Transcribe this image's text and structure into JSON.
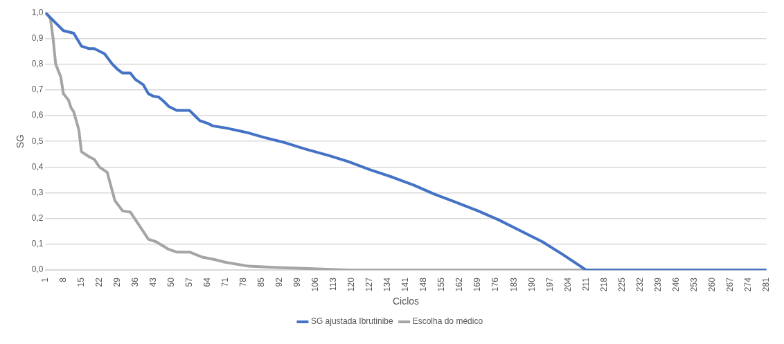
{
  "chart_data": {
    "type": "line",
    "xlabel": "Ciclos",
    "ylabel": "SG",
    "xlim": [
      1,
      281
    ],
    "xticks": [
      1,
      8,
      15,
      22,
      29,
      36,
      43,
      50,
      57,
      64,
      71,
      78,
      85,
      92,
      99,
      106,
      113,
      120,
      127,
      134,
      141,
      148,
      155,
      162,
      169,
      176,
      183,
      190,
      197,
      204,
      211,
      218,
      225,
      232,
      239,
      246,
      253,
      260,
      267,
      274,
      281
    ],
    "ylim": [
      0,
      1
    ],
    "yticks": [
      {
        "value": 0,
        "label": "0,0"
      },
      {
        "value": 0.1,
        "label": "0,1"
      },
      {
        "value": 0.2,
        "label": "0,2"
      },
      {
        "value": 0.3,
        "label": "0,3"
      },
      {
        "value": 0.4,
        "label": "0,4"
      },
      {
        "value": 0.5,
        "label": "0,5"
      },
      {
        "value": 0.6,
        "label": "0,6"
      },
      {
        "value": 0.7,
        "label": "0,7"
      },
      {
        "value": 0.8,
        "label": "0,8"
      },
      {
        "value": 0.9,
        "label": "0,9"
      },
      {
        "value": 1,
        "label": "1,0"
      }
    ],
    "grid": "y",
    "legend": "bottom",
    "series": [
      {
        "name": "SG ajustada Ibrutinibe",
        "color": "#4472c4",
        "x": [
          1,
          5,
          8,
          12,
          15,
          18,
          20,
          22,
          24,
          27,
          29,
          31,
          34,
          36,
          39,
          41,
          43,
          45,
          47,
          49,
          52,
          55,
          57,
          59,
          61,
          64,
          66,
          72,
          79,
          86,
          94,
          102,
          111,
          119,
          127,
          136,
          144,
          152,
          160,
          169,
          177,
          185,
          194,
          202,
          211,
          281
        ],
        "values": [
          1.0,
          0.96,
          0.93,
          0.92,
          0.87,
          0.86,
          0.86,
          0.85,
          0.84,
          0.8,
          0.78,
          0.765,
          0.765,
          0.74,
          0.72,
          0.685,
          0.675,
          0.672,
          0.655,
          0.635,
          0.62,
          0.62,
          0.62,
          0.6,
          0.58,
          0.57,
          0.56,
          0.55,
          0.535,
          0.515,
          0.495,
          0.47,
          0.445,
          0.42,
          0.39,
          0.36,
          0.33,
          0.295,
          0.265,
          0.23,
          0.195,
          0.155,
          0.11,
          0.06,
          0.0,
          0.0
        ]
      },
      {
        "name": "Escolha do médico",
        "color": "#a5a5a5",
        "x": [
          1,
          2,
          3,
          4,
          5,
          7,
          8,
          10,
          11,
          12,
          14,
          15,
          18,
          20,
          22,
          25,
          28,
          31,
          34,
          37,
          40,
          41,
          44,
          49,
          52,
          57,
          62,
          67,
          71,
          80,
          91,
          105,
          119,
          281
        ],
        "values": [
          1.0,
          0.99,
          0.975,
          0.9,
          0.8,
          0.75,
          0.685,
          0.66,
          0.63,
          0.615,
          0.545,
          0.46,
          0.44,
          0.43,
          0.4,
          0.38,
          0.27,
          0.23,
          0.225,
          0.18,
          0.135,
          0.12,
          0.11,
          0.08,
          0.07,
          0.07,
          0.05,
          0.04,
          0.03,
          0.015,
          0.01,
          0.005,
          0.0,
          0.0
        ]
      }
    ]
  }
}
